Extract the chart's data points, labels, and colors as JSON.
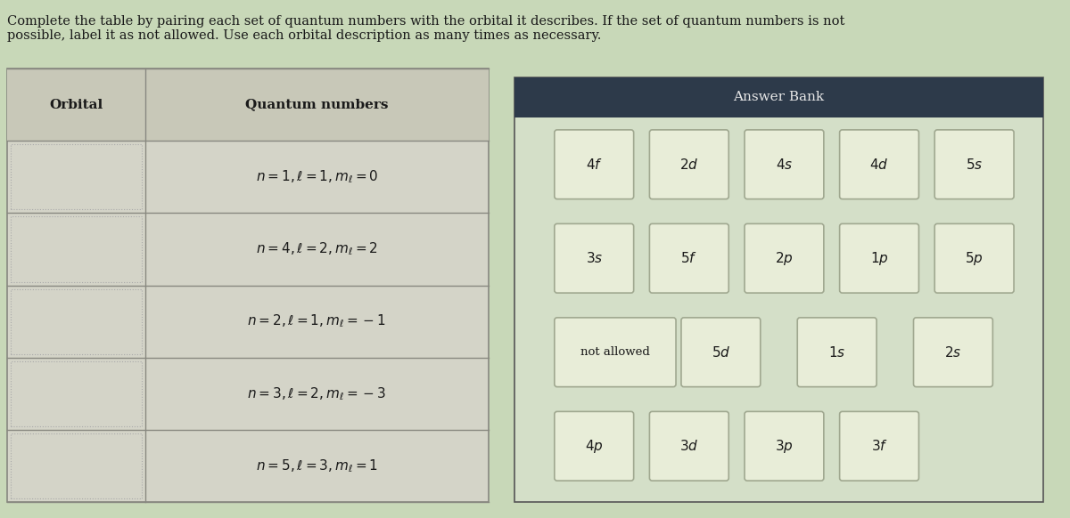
{
  "title_text": "Complete the table by pairing each set of quantum numbers with the orbital it describes. If the set of quantum numbers is not\npossible, label it as not allowed. Use each orbital description as many times as necessary.",
  "table_headers": [
    "Orbital",
    "Quantum numbers"
  ],
  "quantum_numbers": [
    "n = 1, ℓ = 1, mℓ = 0",
    "n = 4, ℓ = 2, mℓ = 2",
    "n = 2, ℓ = 1, mℓ = −1",
    "n = 3, ℓ = 2, mℓ = −3",
    "n = 5, ℓ = 3, mℓ = 1"
  ],
  "answer_bank_title": "Answer Bank",
  "answer_bank_rows": [
    [
      "4f",
      "2d",
      "4s",
      "4d",
      "5s"
    ],
    [
      "3s",
      "5f",
      "2p",
      "1p",
      "5p"
    ],
    [
      "not allowed",
      "5d",
      "1s",
      "2s"
    ],
    [
      "4p",
      "3d",
      "3p",
      "3f"
    ]
  ],
  "bg_color": "#c8d8b8",
  "table_bg": "#d4d4c8",
  "answer_bank_header_color": "#2d3a4a",
  "answer_bank_bg": "#d4dfc8",
  "button_bg": "#e8edd8",
  "button_border": "#a0a890",
  "header_row_bg": "#c8c8b8",
  "text_color": "#1a1a1a",
  "white": "#ffffff"
}
